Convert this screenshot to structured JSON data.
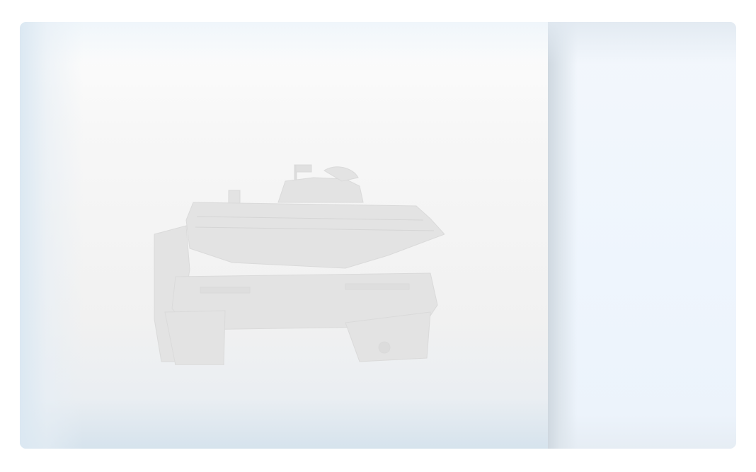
{
  "viewer": {
    "image": "tank-image",
    "background_color": "#f1f1f1",
    "tank_color": "#e2e2e2"
  },
  "side_panel": {
    "background_color": "#eef5fd"
  }
}
